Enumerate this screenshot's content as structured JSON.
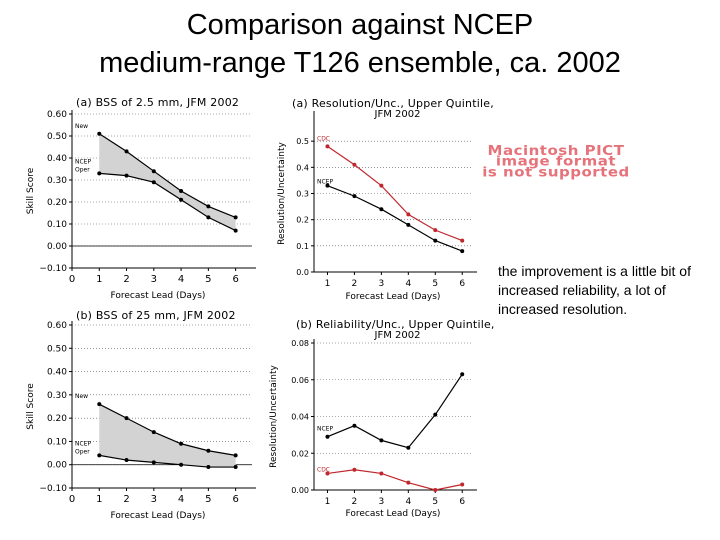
{
  "slide": {
    "title_line1": "Comparison against NCEP",
    "title_line2": "medium-range T126 ensemble, ca. 2002",
    "pict_notice": [
      "Macintosh PICT",
      "image format",
      "is not supported"
    ],
    "note": "the improvement is a little bit of increased reliability, a lot of increased resolution."
  },
  "colors": {
    "new": "#000000",
    "ncep": "#000000",
    "cdc": "#c0272d",
    "base": "#000000",
    "shade": "#d3d3d3"
  },
  "chart_data": [
    {
      "id": "a-left",
      "type": "area",
      "title": "(a) BSS of 2.5 mm, JFM 2002",
      "title_line2": "",
      "xlabel": "Forecast Lead (Days)",
      "ylabel": "Skill Score",
      "xlim": [
        0,
        6.6
      ],
      "ylim": [
        -0.1,
        0.6
      ],
      "xticks": [
        0,
        1,
        2,
        3,
        4,
        5,
        6
      ],
      "yticks": [
        -0.1,
        0.0,
        0.1,
        0.2,
        0.3,
        0.4,
        0.5,
        0.6
      ],
      "ytick_labels": [
        "−0.10",
        "0.00",
        "0.10",
        "0.20",
        "0.30",
        "0.40",
        "0.50",
        "0.60"
      ],
      "grid": "dotted-horizontal",
      "zero_line": true,
      "shade_between": true,
      "x": [
        1,
        2,
        3,
        4,
        5,
        6
      ],
      "series": [
        {
          "name": "New",
          "color_key": "new",
          "values": [
            0.51,
            0.43,
            0.34,
            0.25,
            0.18,
            0.13
          ]
        },
        {
          "name": "NCEP Oper",
          "label_lines": [
            "NCEP",
            "Oper"
          ],
          "color_key": "ncep",
          "values": [
            0.33,
            0.32,
            0.29,
            0.21,
            0.13,
            0.07
          ]
        }
      ]
    },
    {
      "id": "b-left",
      "type": "area",
      "title": "(b) BSS of 25 mm, JFM 2002",
      "title_line2": "",
      "xlabel": "Forecast Lead (Days)",
      "ylabel": "Skill Score",
      "xlim": [
        0,
        6.6
      ],
      "ylim": [
        -0.1,
        0.6
      ],
      "xticks": [
        0,
        1,
        2,
        3,
        4,
        5,
        6
      ],
      "yticks": [
        -0.1,
        0.0,
        0.1,
        0.2,
        0.3,
        0.4,
        0.5,
        0.6
      ],
      "ytick_labels": [
        "−0.10",
        "0.00",
        "0.10",
        "0.20",
        "0.30",
        "0.40",
        "0.50",
        "0.60"
      ],
      "grid": "dotted-horizontal",
      "zero_line": true,
      "shade_between": true,
      "x": [
        1,
        2,
        3,
        4,
        5,
        6
      ],
      "series": [
        {
          "name": "New",
          "color_key": "new",
          "values": [
            0.26,
            0.2,
            0.14,
            0.09,
            0.06,
            0.04
          ]
        },
        {
          "name": "NCEP Oper",
          "label_lines": [
            "NCEP",
            "Oper"
          ],
          "color_key": "ncep",
          "values": [
            0.04,
            0.02,
            0.01,
            0.0,
            -0.01,
            -0.01
          ]
        }
      ]
    },
    {
      "id": "a-right",
      "type": "line",
      "title": "(a) Resolution/Unc., Upper Quintile,",
      "title_line2": "JFM 2002",
      "xlabel": "Forecast Lead (Days)",
      "ylabel": "Resolution/Uncertainty",
      "xlim": [
        0.5,
        6.4
      ],
      "ylim": [
        0,
        0.6
      ],
      "xticks": [
        1,
        2,
        3,
        4,
        5,
        6
      ],
      "yticks": [
        0,
        0.1,
        0.2,
        0.3,
        0.4,
        0.5
      ],
      "ytick_labels": [
        "0.0",
        "0.1",
        "0.2",
        "0.3",
        "0.4",
        "0.5"
      ],
      "grid": "dotted-horizontal",
      "zero_line": false,
      "shade_between": false,
      "x": [
        1,
        2,
        3,
        4,
        5,
        6
      ],
      "series": [
        {
          "name": "CDC",
          "label_lines": [
            "CDC"
          ],
          "color_key": "cdc",
          "values": [
            0.48,
            0.41,
            0.33,
            0.22,
            0.16,
            0.12
          ]
        },
        {
          "name": "NCEP",
          "label_lines": [
            "NCEP"
          ],
          "color_key": "base",
          "values": [
            0.33,
            0.29,
            0.24,
            0.18,
            0.12,
            0.08
          ]
        }
      ]
    },
    {
      "id": "b-right",
      "type": "line",
      "title": "(b) Reliability/Unc., Upper Quintile,",
      "title_line2": "JFM 2002",
      "xlabel": "Forecast Lead (Days)",
      "ylabel": "Resolution/Uncertainty",
      "xlim": [
        0.5,
        6.4
      ],
      "ylim": [
        0,
        0.08
      ],
      "xticks": [
        1,
        2,
        3,
        4,
        5,
        6
      ],
      "yticks": [
        0,
        0.02,
        0.04,
        0.06,
        0.08
      ],
      "ytick_labels": [
        "0.00",
        "0.02",
        "0.04",
        "0.06",
        "0.08"
      ],
      "grid": "dotted-horizontal",
      "zero_line": false,
      "shade_between": false,
      "x": [
        1,
        2,
        3,
        4,
        5,
        6
      ],
      "series": [
        {
          "name": "NCEP",
          "label_lines": [
            "NCEP"
          ],
          "color_key": "base",
          "values": [
            0.029,
            0.035,
            0.027,
            0.023,
            0.041,
            0.063
          ]
        },
        {
          "name": "CDC",
          "label_lines": [
            "CDC"
          ],
          "color_key": "cdc",
          "values": [
            0.009,
            0.011,
            0.009,
            0.004,
            0.0,
            0.003
          ]
        }
      ]
    }
  ]
}
